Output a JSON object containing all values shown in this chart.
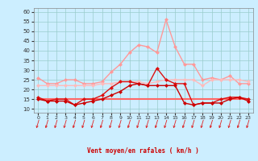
{
  "x": [
    0,
    1,
    2,
    3,
    4,
    5,
    6,
    7,
    8,
    9,
    10,
    11,
    12,
    13,
    14,
    15,
    16,
    17,
    18,
    19,
    20,
    21,
    22,
    23
  ],
  "series": [
    {
      "name": "rafales_light",
      "color": "#ff9999",
      "linewidth": 1.0,
      "markersize": 2.5,
      "marker": "D",
      "values": [
        26,
        23,
        23,
        25,
        25,
        23,
        23,
        24,
        29,
        33,
        39,
        43,
        42,
        39,
        56,
        42,
        33,
        33,
        25,
        26,
        25,
        27,
        23,
        23
      ]
    },
    {
      "name": "mean_light",
      "color": "#ffbbbb",
      "linewidth": 1.0,
      "markersize": 2.5,
      "marker": "D",
      "values": [
        22,
        22,
        22,
        22,
        22,
        22,
        22,
        23,
        23,
        24,
        24,
        24,
        23,
        24,
        25,
        25,
        25,
        25,
        22,
        25,
        25,
        25,
        25,
        24
      ]
    },
    {
      "name": "mean_flat",
      "color": "#ff6666",
      "linewidth": 1.5,
      "markersize": 0,
      "marker": "",
      "values": [
        15,
        15,
        15,
        15,
        15,
        15,
        15,
        15,
        15,
        15,
        15,
        15,
        15,
        15,
        15,
        15,
        15,
        15,
        15,
        15,
        15,
        15,
        15,
        15
      ]
    },
    {
      "name": "rafales_dark",
      "color": "#dd1111",
      "linewidth": 1.0,
      "markersize": 2.5,
      "marker": "D",
      "values": [
        16,
        14,
        15,
        15,
        12,
        15,
        15,
        17,
        21,
        24,
        24,
        23,
        22,
        31,
        25,
        23,
        23,
        12,
        13,
        13,
        15,
        16,
        16,
        15
      ]
    },
    {
      "name": "mean_dark",
      "color": "#cc0000",
      "linewidth": 1.0,
      "markersize": 2.5,
      "marker": "D",
      "values": [
        15,
        14,
        14,
        14,
        12,
        13,
        14,
        15,
        17,
        19,
        22,
        23,
        22,
        22,
        22,
        22,
        13,
        12,
        13,
        13,
        13,
        15,
        16,
        14
      ]
    }
  ],
  "xlabel": "Vent moyen/en rafales ( km/h )",
  "ylim": [
    8,
    62
  ],
  "xlim": [
    -0.5,
    23.5
  ],
  "yticks": [
    10,
    15,
    20,
    25,
    30,
    35,
    40,
    45,
    50,
    55,
    60
  ],
  "xticks": [
    0,
    1,
    2,
    3,
    4,
    5,
    6,
    7,
    8,
    9,
    10,
    11,
    12,
    13,
    14,
    15,
    16,
    17,
    18,
    19,
    20,
    21,
    22,
    23
  ],
  "bg_color": "#cceeff",
  "grid_color": "#99cccc",
  "arrow_color": "#dd2222",
  "xlabel_color": "#cc0000"
}
